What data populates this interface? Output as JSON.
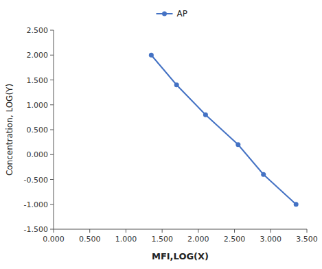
{
  "chart_data": {
    "type": "line",
    "x": [
      1.35,
      1.7,
      2.1,
      2.55,
      2.9,
      3.35
    ],
    "series": [
      {
        "name": "AP",
        "color": "#4472C4",
        "marker": "circle",
        "line_style": "solid",
        "values": [
          2.0,
          1.4,
          0.8,
          0.2,
          -0.4,
          -1.0
        ]
      }
    ],
    "x_label": "MFI,LOG(X)",
    "y_label": "Concentration, LOG(Y)",
    "xlim": [
      0.0,
      3.5
    ],
    "ylim": [
      -1.5,
      2.5
    ],
    "xticks": [
      {
        "value": 0,
        "label": "0.000"
      },
      {
        "value": 0.5,
        "label": "0.500"
      },
      {
        "value": 1,
        "label": "1.000"
      },
      {
        "value": 1.5,
        "label": "1.500"
      },
      {
        "value": 2,
        "label": "2.000"
      },
      {
        "value": 2.5,
        "label": "2.500"
      },
      {
        "value": 3,
        "label": "3.000"
      },
      {
        "value": 3.5,
        "label": "3.500"
      }
    ],
    "yticks": [
      {
        "value": -1.5,
        "label": "-1.500"
      },
      {
        "value": -1,
        "label": "-1.000"
      },
      {
        "value": -0.5,
        "label": "-0.500"
      },
      {
        "value": 0,
        "label": "0.000"
      },
      {
        "value": 0.5,
        "label": "0.500"
      },
      {
        "value": 1,
        "label": "1.000"
      },
      {
        "value": 1.5,
        "label": "1.500"
      },
      {
        "value": 2,
        "label": "2.000"
      },
      {
        "value": 2.5,
        "label": "2.500"
      }
    ],
    "grid": false,
    "legend": "top"
  }
}
